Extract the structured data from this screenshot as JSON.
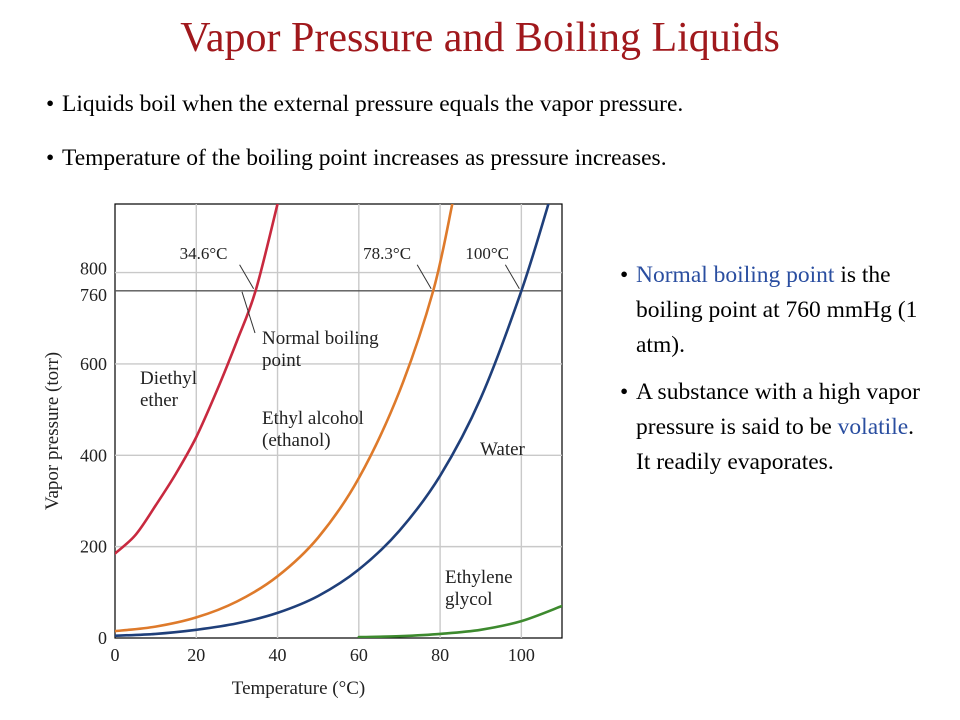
{
  "slide": {
    "title": "Vapor Pressure and Boiling Liquids",
    "bullet_char": "•",
    "top_bullets": [
      "Liquids boil when the external pressure equals the vapor pressure.",
      "Temperature of the boiling point increases as pressure increases."
    ],
    "side_bullets": [
      {
        "highlight": "Normal boiling point",
        "text": " is the boiling point at 760 mmHg (1 atm)."
      },
      {
        "before": "A substance with a high vapor pressure is said to be ",
        "highlight": "volatile",
        "after": ".  It readily evaporates."
      }
    ]
  },
  "colors": {
    "title": "#a0181c",
    "highlight": "#2a4ea0"
  },
  "chart_data": {
    "type": "line",
    "xlabel": "Temperature (°C)",
    "ylabel": "Vapor pressure (torr)",
    "xlim": [
      0,
      110
    ],
    "ylim": [
      0,
      950
    ],
    "x_ticks": [
      "0",
      "20",
      "40",
      "60",
      "80",
      "100"
    ],
    "y_ticks": [
      "0",
      "200",
      "400",
      "600",
      "760",
      "800"
    ],
    "reference_line": {
      "y": 760
    },
    "series": [
      {
        "name": "Diethyl ether",
        "label_lines": [
          "Diethyl",
          "ether"
        ],
        "color": "#c8293f",
        "x": [
          0,
          5,
          10,
          15,
          20,
          25,
          30,
          34.6,
          40
        ],
        "y": [
          185,
          225,
          290,
          360,
          440,
          540,
          650,
          760,
          950
        ]
      },
      {
        "name": "Ethyl alcohol (ethanol)",
        "label_lines": [
          "Ethyl alcohol",
          "(ethanol)"
        ],
        "color": "#de7a2b",
        "x": [
          0,
          10,
          20,
          30,
          40,
          50,
          60,
          70,
          78.3,
          83
        ],
        "y": [
          15,
          25,
          45,
          80,
          135,
          220,
          350,
          540,
          760,
          950
        ]
      },
      {
        "name": "Water",
        "label_lines": [
          "Water"
        ],
        "color": "#1f3f7a",
        "x": [
          0,
          10,
          20,
          30,
          40,
          50,
          60,
          70,
          80,
          90,
          100,
          107
        ],
        "y": [
          5,
          9,
          18,
          32,
          55,
          92,
          150,
          235,
          355,
          525,
          760,
          960
        ]
      },
      {
        "name": "Ethylene glycol",
        "label_lines": [
          "Ethylene",
          "glycol"
        ],
        "color": "#3d8a2e",
        "x": [
          60,
          70,
          80,
          90,
          100,
          110
        ],
        "y": [
          2,
          4,
          9,
          18,
          37,
          70
        ]
      }
    ],
    "annotations": [
      {
        "text": "34.6°C",
        "x": 34.6,
        "y": 760
      },
      {
        "text": "78.3°C",
        "x": 78.3,
        "y": 760
      },
      {
        "text": "100°C",
        "x": 100,
        "y": 760
      }
    ],
    "reference_label_lines": [
      "Normal boiling",
      "point"
    ]
  }
}
